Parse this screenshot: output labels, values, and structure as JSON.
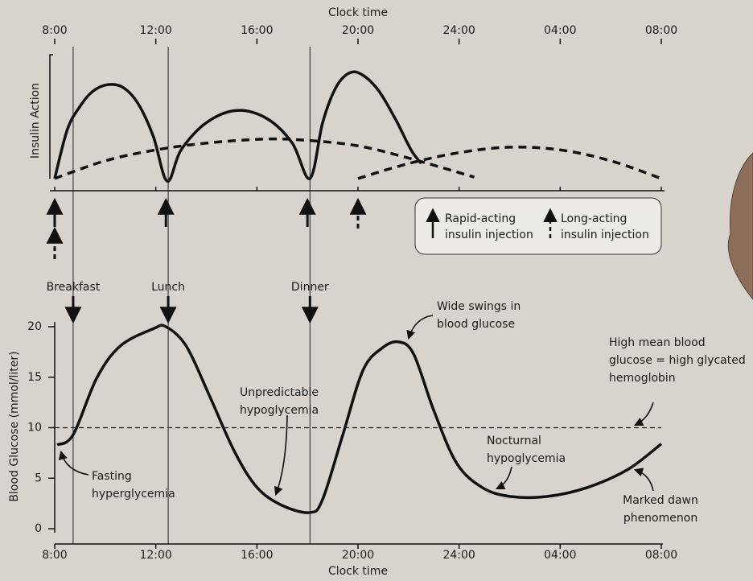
{
  "chart_data": [
    {
      "type": "line",
      "x_label": "Clock time",
      "y_label": "Insulin Action",
      "xlim": [
        8,
        32
      ],
      "xticks": [
        {
          "value": 8,
          "label": "8:00"
        },
        {
          "value": 12,
          "label": "12:00"
        },
        {
          "value": 16,
          "label": "16:00"
        },
        {
          "value": 20,
          "label": "20:00"
        },
        {
          "value": 24,
          "label": "24:00"
        },
        {
          "value": 28,
          "label": "04:00"
        },
        {
          "value": 32,
          "label": "08:00"
        }
      ],
      "ylim": [
        0,
        100
      ],
      "series": [
        {
          "style": "solid",
          "color": "#111111",
          "x": [
            8,
            8.5,
            9,
            9.5,
            10.1,
            10.7,
            11.3,
            11.9,
            12.45,
            13,
            14,
            15.2,
            16.4,
            17.4,
            18.1,
            18.6,
            19.1,
            19.6,
            20.1,
            20.8,
            21.5,
            22.1,
            22.5
          ],
          "values": [
            9,
            45,
            62,
            73,
            78,
            76,
            64,
            40,
            7,
            30,
            50,
            59,
            53,
            35,
            9,
            50,
            75,
            86,
            86,
            74,
            52,
            30,
            20
          ]
        },
        {
          "style": "dashed",
          "color": "#111111",
          "x": [
            8,
            10,
            12,
            14,
            16.3,
            18,
            20,
            22,
            24.6
          ],
          "values": [
            9,
            22,
            30,
            35,
            38,
            37,
            33,
            24,
            10
          ]
        },
        {
          "style": "dashed",
          "color": "#111111",
          "x": [
            20,
            22,
            24,
            26,
            28,
            30,
            32
          ],
          "values": [
            9,
            20,
            28,
            32,
            30,
            22,
            9
          ]
        }
      ],
      "injections": {
        "rapid": [
          8,
          12.4,
          18
        ],
        "long": [
          8,
          20
        ]
      },
      "legend": {
        "rapid": [
          "Rapid-acting",
          "insulin injection"
        ],
        "long": [
          "Long-acting",
          "insulin injection"
        ]
      }
    },
    {
      "type": "line",
      "x_label": "Clock time",
      "y_label": "Blood Glucose (mmol/liter)",
      "xlim": [
        8,
        32
      ],
      "xticks": [
        {
          "value": 8,
          "label": "8:00"
        },
        {
          "value": 12,
          "label": "12:00"
        },
        {
          "value": 16,
          "label": "16:00"
        },
        {
          "value": 20,
          "label": "20:00"
        },
        {
          "value": 24,
          "label": "24:00"
        },
        {
          "value": 28,
          "label": "04:00"
        },
        {
          "value": 32,
          "label": "08:00"
        }
      ],
      "ylim": [
        0,
        20
      ],
      "yticks": [
        0,
        5,
        10,
        15,
        20
      ],
      "reference_line": 10,
      "series": [
        {
          "color": "#111111",
          "x": [
            8.1,
            8.73,
            9.66,
            10.6,
            11.9,
            12.4,
            13.2,
            14.1,
            15.1,
            16,
            17,
            18.1,
            18.6,
            19.4,
            20.2,
            20.96,
            21.6,
            22.2,
            23,
            23.9,
            24.9,
            26,
            27.5,
            29.1,
            30.7,
            32
          ],
          "values": [
            8.3,
            9.3,
            14.9,
            18.1,
            19.8,
            20,
            18.1,
            13.3,
            7.7,
            4.1,
            2.3,
            1.6,
            2.9,
            9.3,
            15.7,
            17.9,
            18.5,
            17.3,
            11.7,
            6.5,
            4.1,
            3.2,
            3.2,
            4.1,
            5.9,
            8.4
          ]
        }
      ],
      "meals": [
        {
          "label": "Breakfast",
          "x": 8.73
        },
        {
          "label": "Lunch",
          "x": 12.49
        },
        {
          "label": "Dinner",
          "x": 18.1
        }
      ],
      "annotations": [
        {
          "lines": [
            "Fasting",
            "hyperglycemia"
          ]
        },
        {
          "lines": [
            "Unpredictable",
            "hypoglycemia"
          ]
        },
        {
          "lines": [
            "Wide swings in",
            "blood glucose"
          ]
        },
        {
          "lines": [
            "High mean blood",
            "glucose = high glycated",
            "hemoglobin"
          ]
        },
        {
          "lines": [
            "Nocturnal",
            "hypoglycemia"
          ]
        },
        {
          "lines": [
            "Marked dawn",
            "phenomenon"
          ]
        }
      ]
    }
  ]
}
